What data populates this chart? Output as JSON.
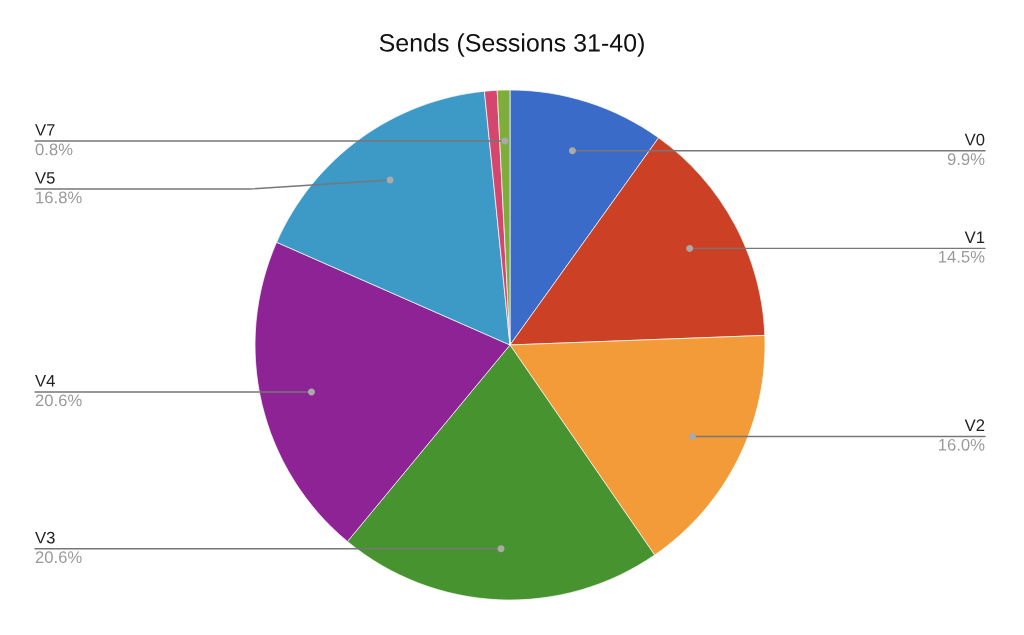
{
  "chart_data": {
    "type": "pie",
    "title": "Sends (Sessions 31-40)",
    "categories": [
      "V0",
      "V1",
      "V2",
      "V3",
      "V4",
      "V5",
      null,
      "V7"
    ],
    "values": [
      9.9,
      14.5,
      16.0,
      20.6,
      20.6,
      16.8,
      0.8,
      0.8
    ],
    "value_labels": [
      "9.9%",
      "14.5%",
      "16.0%",
      "20.6%",
      "20.6%",
      "16.8%",
      null,
      "0.8%"
    ],
    "colors": [
      "#3b6bc9",
      "#cc4125",
      "#f29b38",
      "#46932f",
      "#8e2396",
      "#3d99c6",
      "#d4466e",
      "#7fad3b"
    ],
    "legend": false
  }
}
